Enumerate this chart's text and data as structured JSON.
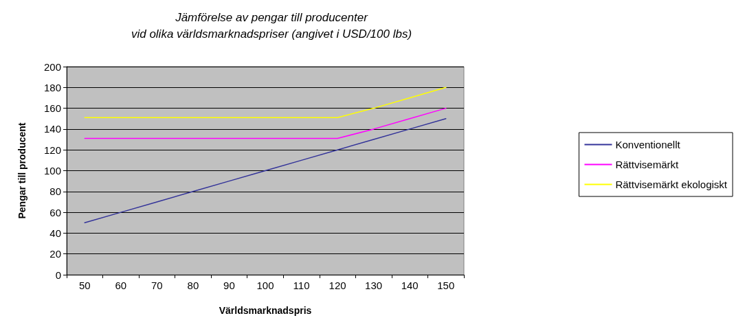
{
  "chart_data": {
    "type": "line",
    "title": "Jämförelse av pengar till producenter\nvid olika världsmarknadspriser (angivet i USD/100 lbs)",
    "xlabel": "Världsmarknadspris",
    "ylabel": "Pengar till producent",
    "categories": [
      "50",
      "60",
      "70",
      "80",
      "90",
      "100",
      "110",
      "120",
      "130",
      "140",
      "150"
    ],
    "series": [
      {
        "name": "Konventionellt",
        "color": "#333399",
        "values": [
          50,
          60,
          70,
          80,
          90,
          100,
          110,
          120,
          130,
          140,
          150
        ]
      },
      {
        "name": "Rättvisemärkt",
        "color": "#ff00ff",
        "values": [
          131,
          131,
          131,
          131,
          131,
          131,
          131,
          131,
          140,
          150,
          160
        ]
      },
      {
        "name": "Rättvisemärkt ekologiskt",
        "color": "#ffff00",
        "values": [
          151,
          151,
          151,
          151,
          151,
          151,
          151,
          151,
          160,
          170,
          180
        ]
      }
    ],
    "ylim": [
      0,
      200
    ],
    "yticks": [
      0,
      20,
      40,
      60,
      80,
      100,
      120,
      140,
      160,
      180,
      200
    ],
    "grid": "y",
    "legend": "right",
    "marker": "none",
    "line_style": "solid"
  }
}
